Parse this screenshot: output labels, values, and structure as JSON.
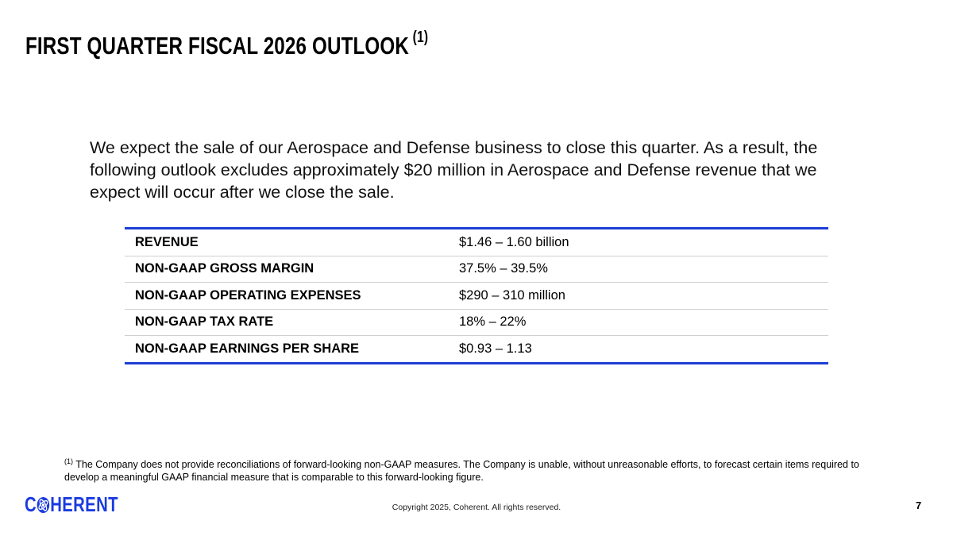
{
  "title": "FIRST QUARTER FISCAL 2026 OUTLOOK",
  "title_note": "(1)",
  "intro": "We expect the sale of our Aerospace and Defense business to close this quarter. As a result, the following outlook excludes approximately $20 million in Aerospace and Defense revenue that we expect will occur after we close the sale.",
  "table": [
    {
      "label": "REVENUE",
      "value": "$1.46 – 1.60 billion"
    },
    {
      "label": "NON-GAAP GROSS MARGIN",
      "value": "37.5% – 39.5%"
    },
    {
      "label": "NON-GAAP OPERATING EXPENSES",
      "value": "$290 – 310 million"
    },
    {
      "label": "NON-GAAP TAX RATE",
      "value": "18% – 22%"
    },
    {
      "label": "NON-GAAP EARNINGS PER SHARE",
      "value": "$0.93 – 1.13"
    }
  ],
  "footnote_marker": "(1)",
  "footnote": " The Company does not provide reconciliations of forward-looking non-GAAP measures. The Company is unable, without unreasonable efforts, to forecast certain items required to develop a meaningful GAAP financial measure that is comparable to this forward-looking figure.",
  "logo": {
    "first": "C",
    "rest": "HERENT",
    "full": "COHERENT"
  },
  "copyright": "Copyright 2025, Coherent. All rights reserved.",
  "page_number": "7",
  "colors": {
    "accent": "#1d3fd6",
    "logo": "#1a3be0"
  }
}
